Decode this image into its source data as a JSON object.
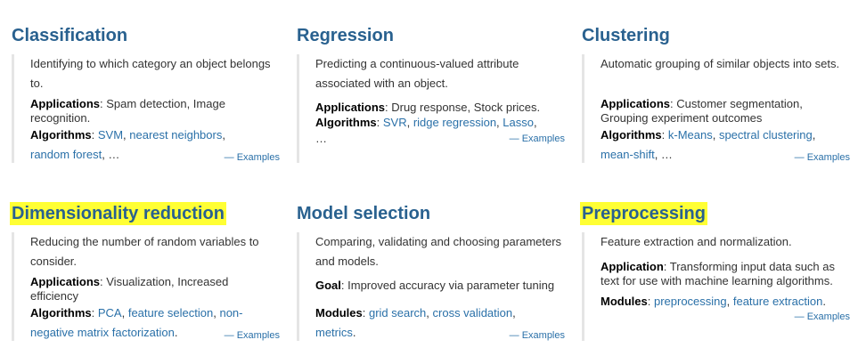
{
  "cards": [
    {
      "title": "Classification",
      "desc": "Identifying to which category an object belongs to.",
      "apps_label": "Applications",
      "apps_text": ": Spam detection, Image recognition.",
      "algos_label": "Algorithms",
      "sep": ": ",
      "link1": "SVM",
      "comma1": ", ",
      "link2": "nearest neighbors",
      "comma2": ",",
      "link3": "random forest",
      "tail": ", …",
      "examples": "— Examples"
    },
    {
      "title": "Regression",
      "desc": "Predicting a continuous-valued attribute associated with an object.",
      "apps_label": "Applications",
      "apps_text": ": Drug response, Stock prices.",
      "algos_label": "Algorithms",
      "sep": ": ",
      "link1": "SVR",
      "comma1": ", ",
      "link2": "ridge regression",
      "comma2": ", ",
      "link3": "Lasso",
      "tail": ",",
      "ellipsis": "…",
      "examples": "— Examples"
    },
    {
      "title": "Clustering",
      "desc": "Automatic grouping of similar objects into sets.",
      "apps_label": "Applications",
      "apps_text": ": Customer segmentation, Grouping experiment outcomes",
      "algos_label": "Algorithms",
      "sep": ": ",
      "link1": "k-Means",
      "comma1": ", ",
      "link2": "spectral clustering",
      "comma2": ",",
      "link3": "mean-shift",
      "tail": ", …",
      "examples": "— Examples"
    },
    {
      "title": "Dimensionality reduction",
      "desc": "Reducing the number of random variables to consider.",
      "apps_label": "Applications",
      "apps_text": ": Visualization, Increased efficiency",
      "algos_label": "Algorithms",
      "sep": ": ",
      "link1": "PCA",
      "comma1": ", ",
      "link2": "feature selection",
      "comma2": ", ",
      "link3": "non-negative matrix factorization",
      "tail": ".",
      "examples": "— Examples"
    },
    {
      "title": "Model selection",
      "desc": "Comparing, validating and choosing parameters and models.",
      "goal_label": "Goal",
      "goal_text": ": Improved accuracy via parameter tuning",
      "mods_label": "Modules",
      "sep": ": ",
      "link1": "grid search",
      "comma1": ", ",
      "link2": "cross validation",
      "comma2": ",",
      "link3": "metrics",
      "tail": ".",
      "examples": "— Examples"
    },
    {
      "title": "Preprocessing",
      "desc": "Feature extraction and normalization.",
      "app_label": "Application",
      "app_text": ": Transforming input data such as text for use with machine learning algorithms.",
      "mods_label": "Modules",
      "sep": ": ",
      "link1": "preprocessing",
      "comma1": ", ",
      "link2": "feature extraction",
      "tail": ".",
      "examples": "— Examples"
    }
  ],
  "colors": {
    "title": "#29618f",
    "link": "#2a70a8",
    "highlight": "#ffff34"
  }
}
